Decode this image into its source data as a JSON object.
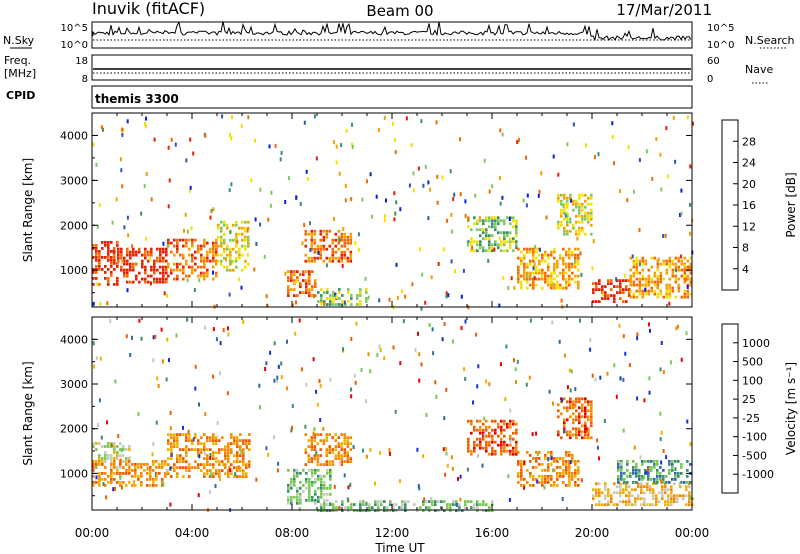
{
  "header": {
    "station": "Inuvik (fitACF)",
    "beam": "Beam 00",
    "date": "17/Mar/2011"
  },
  "top_panels": {
    "sky_label": "N.Sky",
    "search_label": "N.Search",
    "sky_ticks": [
      "10^5",
      "10^0"
    ],
    "search_ticks": [
      "10^5",
      "10^0"
    ],
    "freq_label_1": "Freq.",
    "freq_label_2": "[MHz]",
    "freq_ticks": [
      "18",
      "8"
    ],
    "nave_label": "Nave",
    "nave_ticks": [
      "60",
      "0"
    ],
    "cpid_label": "CPID",
    "cpid_value": "themis 3300"
  },
  "colors": {
    "power_scale": [
      "#0a1fe0",
      "#2e55b8",
      "#3a8f6a",
      "#7fc860",
      "#f2e000",
      "#f5a000",
      "#f56a00",
      "#e81e00"
    ],
    "velocity_scale": [
      "#1830d8",
      "#2e66b0",
      "#3a8f6a",
      "#75c850",
      "#c8c8c0",
      "#f0b000",
      "#f58a00",
      "#f05a00",
      "#e80000"
    ]
  },
  "chart_data": [
    {
      "type": "heatmap",
      "title": "",
      "xlabel": "Time UT",
      "ylabel": "Slant Range [km]",
      "ylim": [
        180,
        4500
      ],
      "xlim": [
        "00:00",
        "24:00"
      ],
      "x_ticks": [
        "00:00",
        "04:00",
        "08:00",
        "12:00",
        "16:00",
        "20:00",
        "00:00"
      ],
      "y_ticks": [
        "1000",
        "2000",
        "3000",
        "4000"
      ],
      "colorbar": {
        "label": "Power [dB]",
        "ticks": [
          "28",
          "24",
          "20",
          "16",
          "12",
          "8",
          "4"
        ]
      },
      "bands": [
        {
          "t0": 0.0,
          "t1": 1.0,
          "r0": 700,
          "r1": 1650,
          "level": 7
        },
        {
          "t0": 1.0,
          "t1": 3.0,
          "r0": 700,
          "r1": 1500,
          "level": 7
        },
        {
          "t0": 3.0,
          "t1": 5.0,
          "r0": 800,
          "r1": 1700,
          "level": 6
        },
        {
          "t0": 5.0,
          "t1": 6.3,
          "r0": 1000,
          "r1": 2100,
          "level": 4
        },
        {
          "t0": 7.8,
          "t1": 9.0,
          "r0": 450,
          "r1": 1000,
          "level": 6
        },
        {
          "t0": 8.5,
          "t1": 10.4,
          "r0": 1200,
          "r1": 1900,
          "level": 6
        },
        {
          "t0": 9.0,
          "t1": 11.0,
          "r0": 250,
          "r1": 600,
          "level": 3
        },
        {
          "t0": 15.0,
          "t1": 17.0,
          "r0": 1400,
          "r1": 2200,
          "level": 3
        },
        {
          "t0": 17.0,
          "t1": 19.5,
          "r0": 600,
          "r1": 1500,
          "level": 5
        },
        {
          "t0": 18.6,
          "t1": 20.0,
          "r0": 1800,
          "r1": 2700,
          "level": 4
        },
        {
          "t0": 20.0,
          "t1": 21.5,
          "r0": 300,
          "r1": 800,
          "level": 7
        },
        {
          "t0": 21.5,
          "t1": 24.0,
          "r0": 400,
          "r1": 1300,
          "level": 5
        }
      ]
    },
    {
      "type": "heatmap",
      "title": "",
      "xlabel": "Time UT",
      "ylabel": "Slant Range [km]",
      "ylim": [
        180,
        4500
      ],
      "xlim": [
        "00:00",
        "24:00"
      ],
      "x_ticks": [
        "00:00",
        "04:00",
        "08:00",
        "12:00",
        "16:00",
        "20:00",
        "00:00"
      ],
      "y_ticks": [
        "1000",
        "2000",
        "3000",
        "4000"
      ],
      "colorbar": {
        "label": "Velocity [m s⁻¹]",
        "ticks": [
          "1000",
          "500",
          "100",
          "25",
          "-25",
          "-100",
          "-500",
          "-1000"
        ]
      },
      "bands": [
        {
          "t0": 0.0,
          "t1": 1.5,
          "r0": 1100,
          "r1": 1700,
          "level": 4
        },
        {
          "t0": 0.0,
          "t1": 3.0,
          "r0": 700,
          "r1": 1300,
          "level": 6
        },
        {
          "t0": 3.0,
          "t1": 6.3,
          "r0": 900,
          "r1": 1900,
          "level": 6
        },
        {
          "t0": 7.8,
          "t1": 9.5,
          "r0": 350,
          "r1": 1100,
          "level": 3
        },
        {
          "t0": 8.5,
          "t1": 10.4,
          "r0": 1200,
          "r1": 1900,
          "level": 6
        },
        {
          "t0": 9.0,
          "t1": 16.0,
          "r0": 180,
          "r1": 400,
          "level": 3
        },
        {
          "t0": 15.0,
          "t1": 17.0,
          "r0": 1400,
          "r1": 2200,
          "level": 7
        },
        {
          "t0": 17.0,
          "t1": 19.5,
          "r0": 700,
          "r1": 1500,
          "level": 6
        },
        {
          "t0": 18.6,
          "t1": 20.0,
          "r0": 1800,
          "r1": 2700,
          "level": 7
        },
        {
          "t0": 20.0,
          "t1": 24.0,
          "r0": 300,
          "r1": 800,
          "level": 5
        },
        {
          "t0": 21.0,
          "t1": 24.0,
          "r0": 800,
          "r1": 1300,
          "level": 2
        }
      ]
    }
  ]
}
